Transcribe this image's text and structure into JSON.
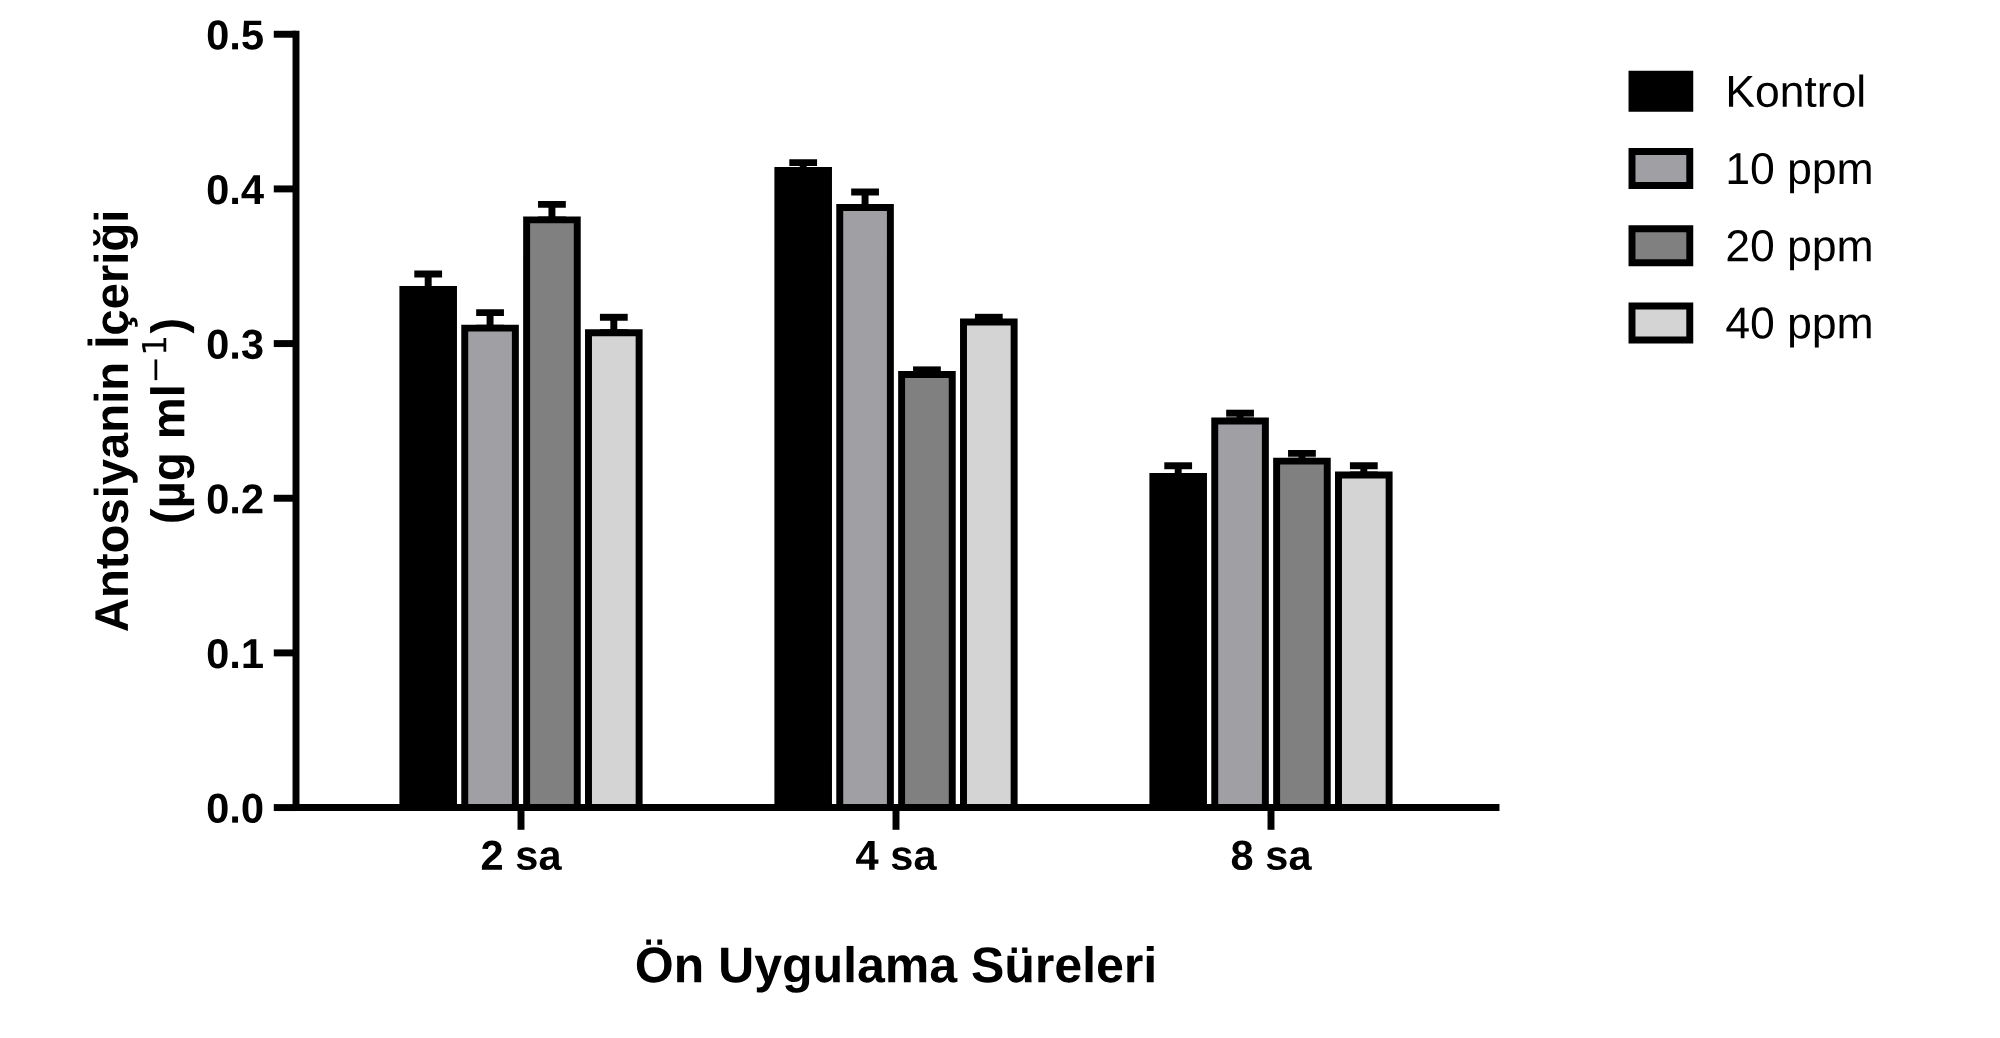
{
  "chart_data": {
    "type": "bar",
    "xlabel": "Ön Uygulama Süreleri",
    "ylabel": "Antosiyanin İçeriği\n(µg ml$^{−1}$)",
    "categories": [
      "2 sa",
      "4 sa",
      "8 sa"
    ],
    "series": [
      {
        "name": "Kontrol",
        "color": "#000000",
        "values": [
          0.335,
          0.412,
          0.214
        ],
        "errors": [
          0.01,
          0.005,
          0.007
        ]
      },
      {
        "name": "10 ppm",
        "color": "#a0a0a4",
        "values": [
          0.31,
          0.388,
          0.25
        ],
        "errors": [
          0.01,
          0.01,
          0.005
        ]
      },
      {
        "name": "20 ppm",
        "color": "#808080",
        "values": [
          0.38,
          0.28,
          0.224
        ],
        "errors": [
          0.01,
          0.003,
          0.005
        ]
      },
      {
        "name": "40 ppm",
        "color": "#d4d4d4",
        "values": [
          0.307,
          0.314,
          0.215
        ],
        "errors": [
          0.01,
          0.003,
          0.006
        ]
      }
    ],
    "ylim": [
      0,
      0.5
    ],
    "yticks": [
      {
        "value": 0,
        "label": "0.0"
      },
      0.1,
      0.2,
      0.3,
      0.4,
      0.5
    ],
    "grid": false,
    "legend": "right"
  }
}
